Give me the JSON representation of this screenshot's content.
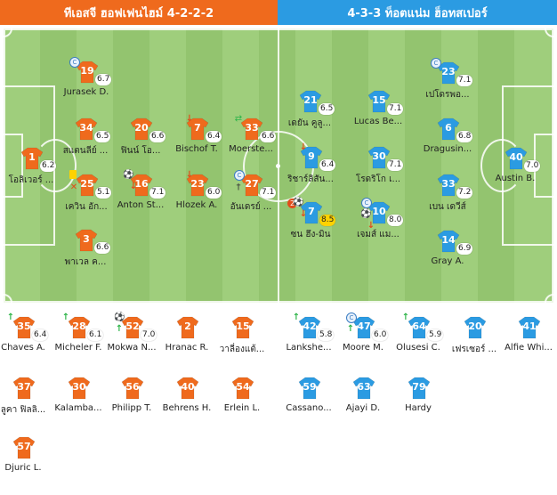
{
  "header": {
    "home_title": "ทีเอสจี ฮอฟเฟนไฮม์ 4-2-2-2",
    "away_title": "4-3-3 ท็อตแน่ม ฮ็อทสเปอร์"
  },
  "colors": {
    "home": "#ef6a1d",
    "away": "#2b9be2",
    "rating_highlight": "#ffd200"
  },
  "pitch": {
    "home": [
      {
        "number": "1",
        "name": "โอลิเวอร์ ...",
        "rating": "6.2",
        "events": []
      },
      {
        "number": "19",
        "name": "Jurasek D.",
        "rating": "6.7",
        "events": [
          "captain-icon"
        ]
      },
      {
        "number": "34",
        "name": "สแตนลีย์ ...",
        "rating": "6.5",
        "events": []
      },
      {
        "number": "25",
        "name": "เควิน อัก...",
        "rating": "5.1",
        "events": [
          "yellow-card-icon",
          "injury-icon"
        ]
      },
      {
        "number": "3",
        "name": "พาเวล ค...",
        "rating": "6.6",
        "events": []
      },
      {
        "number": "20",
        "name": "ฟินน์ โอ...",
        "rating": "6.6",
        "events": []
      },
      {
        "number": "16",
        "name": "Anton St...",
        "rating": "7.1",
        "events": [
          "ball-icon",
          "sub-out-icon"
        ]
      },
      {
        "number": "7",
        "name": "Bischof T.",
        "rating": "6.4",
        "events": [
          "sub-out-icon"
        ]
      },
      {
        "number": "23",
        "name": "Hlozek A.",
        "rating": "6.0",
        "events": [
          "sub-out-icon"
        ]
      },
      {
        "number": "33",
        "name": "Moerste...",
        "rating": "6.6",
        "events": [
          "substitution-icon"
        ]
      },
      {
        "number": "27",
        "name": "อันเดรย์ ...",
        "rating": "7.1",
        "events": [
          "captain-icon",
          "goal-post-icon"
        ]
      }
    ],
    "away": [
      {
        "number": "21",
        "name": "เดยัน คูลู...",
        "rating": "6.5",
        "events": []
      },
      {
        "number": "9",
        "name": "ริชาร์ลิสัน...",
        "rating": "6.4",
        "events": [
          "sub-out-icon"
        ]
      },
      {
        "number": "7",
        "name": "ซน ฮึง-มิน",
        "rating": "8.5",
        "highlight": true,
        "goal_count": "2",
        "events": [
          "goal-count-icon",
          "ball-icon",
          "sub-out-icon"
        ]
      },
      {
        "number": "15",
        "name": "Lucas Be...",
        "rating": "7.1",
        "events": []
      },
      {
        "number": "30",
        "name": "โรดริโก เ...",
        "rating": "7.1",
        "events": []
      },
      {
        "number": "10",
        "name": "เจมส์ แม...",
        "rating": "8.0",
        "events": [
          "captain-icon",
          "ball-icon",
          "sub-out-icon"
        ]
      },
      {
        "number": "23",
        "name": "เปโดรพอ...",
        "rating": "7.1",
        "events": [
          "captain-icon"
        ]
      },
      {
        "number": "6",
        "name": "Dragusin...",
        "rating": "6.8",
        "events": []
      },
      {
        "number": "33",
        "name": "เบน เดวีส์",
        "rating": "7.2",
        "events": []
      },
      {
        "number": "14",
        "name": "Gray A.",
        "rating": "6.9",
        "events": []
      },
      {
        "number": "40",
        "name": "Austin B.",
        "rating": "7.0",
        "events": []
      }
    ]
  },
  "bench": {
    "home": [
      {
        "number": "35",
        "name": "Chaves A.",
        "rating": "6.4",
        "events": [
          "sub-in-icon"
        ]
      },
      {
        "number": "28",
        "name": "Micheler F.",
        "rating": "6.1",
        "events": [
          "sub-in-icon"
        ]
      },
      {
        "number": "52",
        "name": "Mokwa N...",
        "rating": "7.0",
        "events": [
          "ball-icon",
          "sub-in-icon"
        ]
      },
      {
        "number": "2",
        "name": "Hranac R.",
        "rating": "",
        "events": []
      },
      {
        "number": "15",
        "name": "วาลี่องแต้...",
        "rating": "",
        "events": []
      },
      {
        "number": "37",
        "name": "ลูคา ฟิลลิ...",
        "rating": "",
        "events": []
      },
      {
        "number": "30",
        "name": "Kalamba...",
        "rating": "",
        "events": []
      },
      {
        "number": "56",
        "name": "Philipp T.",
        "rating": "",
        "events": []
      },
      {
        "number": "40",
        "name": "Behrens H.",
        "rating": "",
        "events": []
      },
      {
        "number": "54",
        "name": "Erlein L.",
        "rating": "",
        "events": []
      },
      {
        "number": "57",
        "name": "Djuric L.",
        "rating": "",
        "events": []
      }
    ],
    "away": [
      {
        "number": "42",
        "name": "Lankshe...",
        "rating": "5.8",
        "events": [
          "sub-in-icon"
        ]
      },
      {
        "number": "47",
        "name": "Moore M.",
        "rating": "6.0",
        "events": [
          "captain-icon",
          "sub-in-icon"
        ]
      },
      {
        "number": "64",
        "name": "Olusesi C.",
        "rating": "5.9",
        "events": [
          "sub-in-icon"
        ]
      },
      {
        "number": "20",
        "name": "เฟรเซอร์ ...",
        "rating": "",
        "events": []
      },
      {
        "number": "41",
        "name": "Alfie Whi...",
        "rating": "",
        "events": []
      },
      {
        "number": "59",
        "name": "Cassano...",
        "rating": "",
        "events": []
      },
      {
        "number": "63",
        "name": "Ajayi D.",
        "rating": "",
        "events": []
      },
      {
        "number": "79",
        "name": "Hardy",
        "rating": "",
        "events": []
      }
    ]
  }
}
